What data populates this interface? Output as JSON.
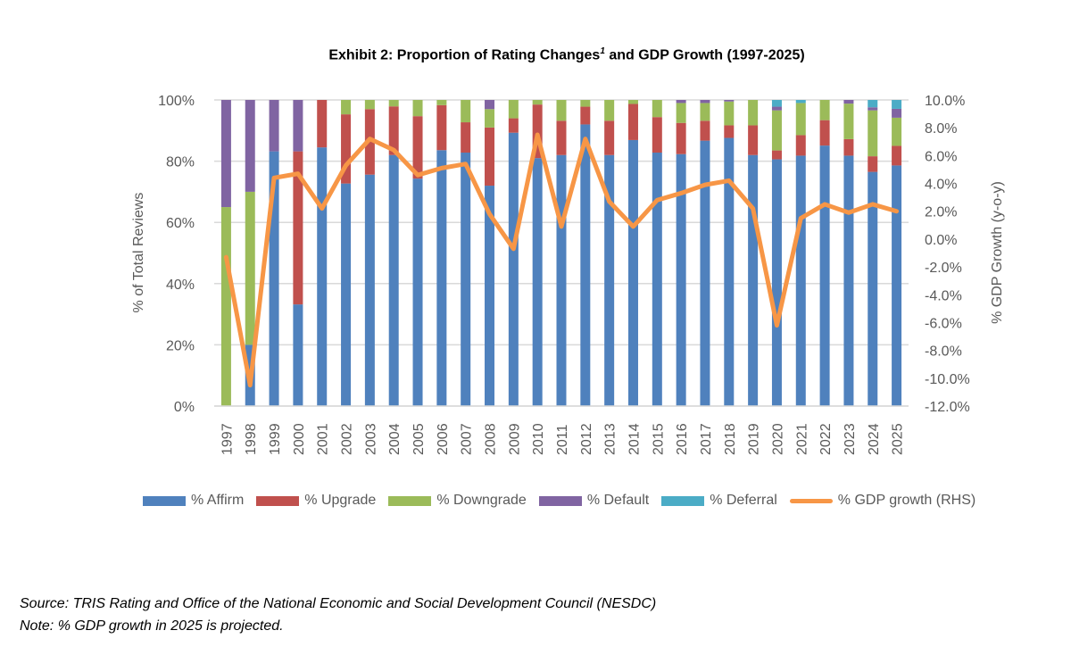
{
  "title": {
    "main": "Exhibit 2: Proportion of Rating Changes",
    "sup": "1",
    "rest": " and GDP Growth (1997-2025)"
  },
  "chart_data": {
    "type": "bar",
    "stacked": true,
    "title": "Exhibit 2: Proportion of Rating Changes and GDP Growth (1997-2025)",
    "ylabel": "% of Total Reviews",
    "y2label": "% GDP Growth (y-o-y)",
    "ylim": [
      0,
      100
    ],
    "y2lim": [
      -12,
      10
    ],
    "yticks": [
      "0%",
      "20%",
      "40%",
      "60%",
      "80%",
      "100%"
    ],
    "y2ticks": [
      "-12.0%",
      "-10.0%",
      "-8.0%",
      "-6.0%",
      "-4.0%",
      "-2.0%",
      "0.0%",
      "2.0%",
      "4.0%",
      "6.0%",
      "8.0%",
      "10.0%"
    ],
    "categories": [
      "1997",
      "1998",
      "1999",
      "2000",
      "2001",
      "2002",
      "2003",
      "2004",
      "2005",
      "2006",
      "2007",
      "2008",
      "2009",
      "2010",
      "2011",
      "2012",
      "2013",
      "2014",
      "2015",
      "2016",
      "2017",
      "2018",
      "2019",
      "2020",
      "2021",
      "2022",
      "2023",
      "2024",
      "2025"
    ],
    "series": [
      {
        "name": "% Affirm",
        "color": "#4f81bd",
        "values": [
          0,
          20,
          83.2,
          33.2,
          84.5,
          72.7,
          75.6,
          82,
          74.3,
          83.6,
          82.8,
          72,
          89.3,
          81,
          82,
          92,
          82,
          86.9,
          82.8,
          82.3,
          86.7,
          87.6,
          82,
          80.6,
          81.8,
          85.1,
          81.8,
          76.5,
          78.6
        ]
      },
      {
        "name": "% Upgrade",
        "color": "#c0504d",
        "values": [
          0,
          0,
          0,
          50,
          15.5,
          22.6,
          21.4,
          15.9,
          20.4,
          14.7,
          9.9,
          19,
          4.7,
          17.5,
          11.2,
          5.8,
          11.2,
          11.8,
          11.6,
          10.2,
          6.5,
          4.1,
          9.7,
          2.9,
          6.7,
          8.3,
          5.4,
          5.1,
          6.4
        ]
      },
      {
        "name": "% Downgrade",
        "color": "#9bbb59",
        "values": [
          65,
          50,
          0,
          0,
          0,
          4.7,
          3,
          2.1,
          5.3,
          1.7,
          7.3,
          6,
          6,
          1.5,
          6.8,
          2.2,
          6.8,
          1.3,
          5.6,
          6.5,
          5.8,
          7.8,
          8.3,
          13.1,
          10.5,
          6.6,
          11.6,
          15,
          9.2
        ]
      },
      {
        "name": "% Default",
        "color": "#8064a2",
        "values": [
          35,
          30,
          16.8,
          16.8,
          0,
          0,
          0,
          0,
          0,
          0,
          0,
          3,
          0,
          0,
          0,
          0,
          0,
          0,
          0,
          1,
          1,
          0.5,
          0,
          1.2,
          0,
          0,
          1.2,
          1,
          2.9
        ]
      },
      {
        "name": "% Deferral",
        "color": "#4bacc6",
        "values": [
          0,
          0,
          0,
          0,
          0,
          0,
          0,
          0,
          0,
          0,
          0,
          0,
          0,
          0,
          0,
          0,
          0,
          0,
          0,
          0,
          0,
          0,
          0,
          2.2,
          1,
          0,
          0,
          2.4,
          2.9
        ]
      }
    ],
    "line": {
      "name": "% GDP growth (RHS)",
      "color": "#f79646",
      "axis": "right",
      "values": [
        -1.3,
        -10.5,
        4.4,
        4.7,
        2.2,
        5.3,
        7.2,
        6.4,
        4.6,
        5.1,
        5.4,
        1.8,
        -0.7,
        7.5,
        0.9,
        7.2,
        2.7,
        0.9,
        2.8,
        3.3,
        3.9,
        4.2,
        2.2,
        -6.2,
        1.5,
        2.5,
        1.9,
        2.5,
        2.0
      ]
    },
    "grid": true,
    "legend": "bottom"
  },
  "footer": {
    "source": "Source: TRIS Rating and Office of the National Economic and Social Development Council (NESDC)",
    "note": "Note: % GDP growth in 2025 is projected."
  }
}
